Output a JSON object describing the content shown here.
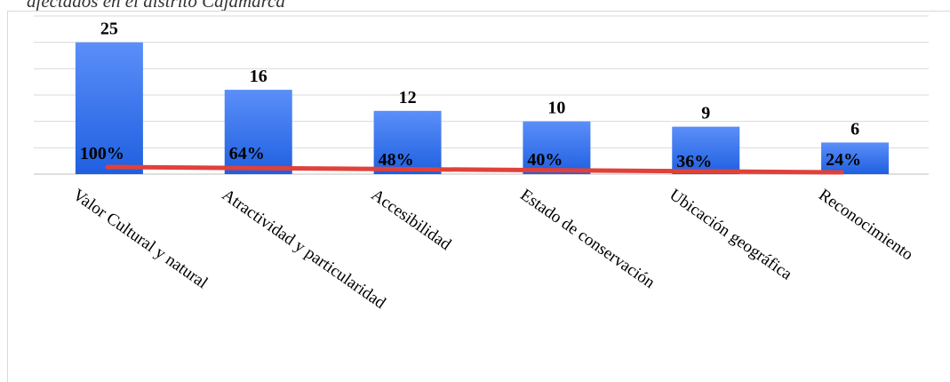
{
  "chart_data": {
    "type": "bar",
    "title": "afectados en el distrito Cajamarca",
    "categories": [
      "Valor Cultural y natural",
      "Atractividad y particularidad",
      "Accesibilidad",
      "Estado de conservación",
      "Ubicación geográfica",
      "Reconocimiento"
    ],
    "values": [
      25,
      16,
      12,
      10,
      9,
      6
    ],
    "percent_labels": [
      "100%",
      "64%",
      "48%",
      "40%",
      "36%",
      "24%"
    ],
    "ylim": [
      0,
      30
    ],
    "grid": true,
    "colors": {
      "bar_top": "#5b8ff9",
      "bar_bottom": "#1f5fe0",
      "trend_line": "#e0413a"
    }
  }
}
